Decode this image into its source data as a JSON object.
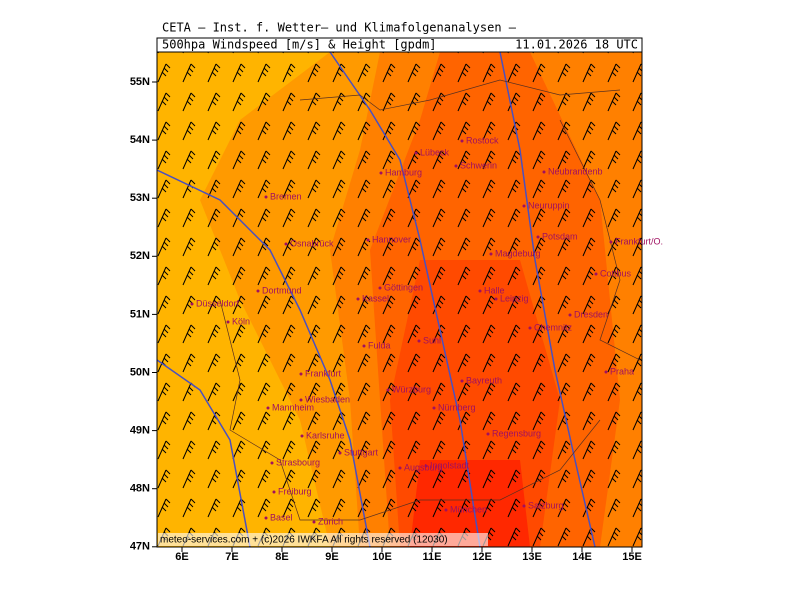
{
  "header": {
    "institute": "CETA — Inst. f. Wetter— und Klimafolgenanalysen —",
    "product": "500hpa Windspeed [m/s] & Height [gpdm]",
    "valid": "11.01.2026 18 UTC"
  },
  "axes": {
    "lat_labels": [
      "55N",
      "54N",
      "53N",
      "52N",
      "51N",
      "50N",
      "49N",
      "48N",
      "47N"
    ],
    "lon_labels": [
      "6E",
      "7E",
      "8E",
      "9E",
      "10E",
      "11E",
      "12E",
      "13E",
      "14E",
      "15E"
    ]
  },
  "cities": [
    "Lübeck",
    "Rostock",
    "Schwerin",
    "Hamburg",
    "Neubrandenb",
    "Neuruppin",
    "Potsdam",
    "Frankfurt/O.",
    "Bremen",
    "Osnabrück",
    "Hannover",
    "Magdeburg",
    "Cottbus",
    "Göttingen",
    "Kassel",
    "Halle",
    "Leipzig",
    "Dresden",
    "Chemnitz",
    "Dortmund",
    "Düsseldorf",
    "Köln",
    "Fulda",
    "Suhl",
    "Frankfurt",
    "Bayreuth",
    "Wiesbaden",
    "Würzburg",
    "Nürnberg",
    "Mannheim",
    "Regensburg",
    "Karlsruhe",
    "Stuttgart",
    "Ingolstadt",
    "Augsburg",
    "Strasbourg",
    "Freiburg",
    "München",
    "Basel",
    "Zürich",
    "Salzburg",
    "Praha"
  ],
  "footer": "meteo-services.com + (c)2026 IWKFA All rights reserved (12030)"
}
